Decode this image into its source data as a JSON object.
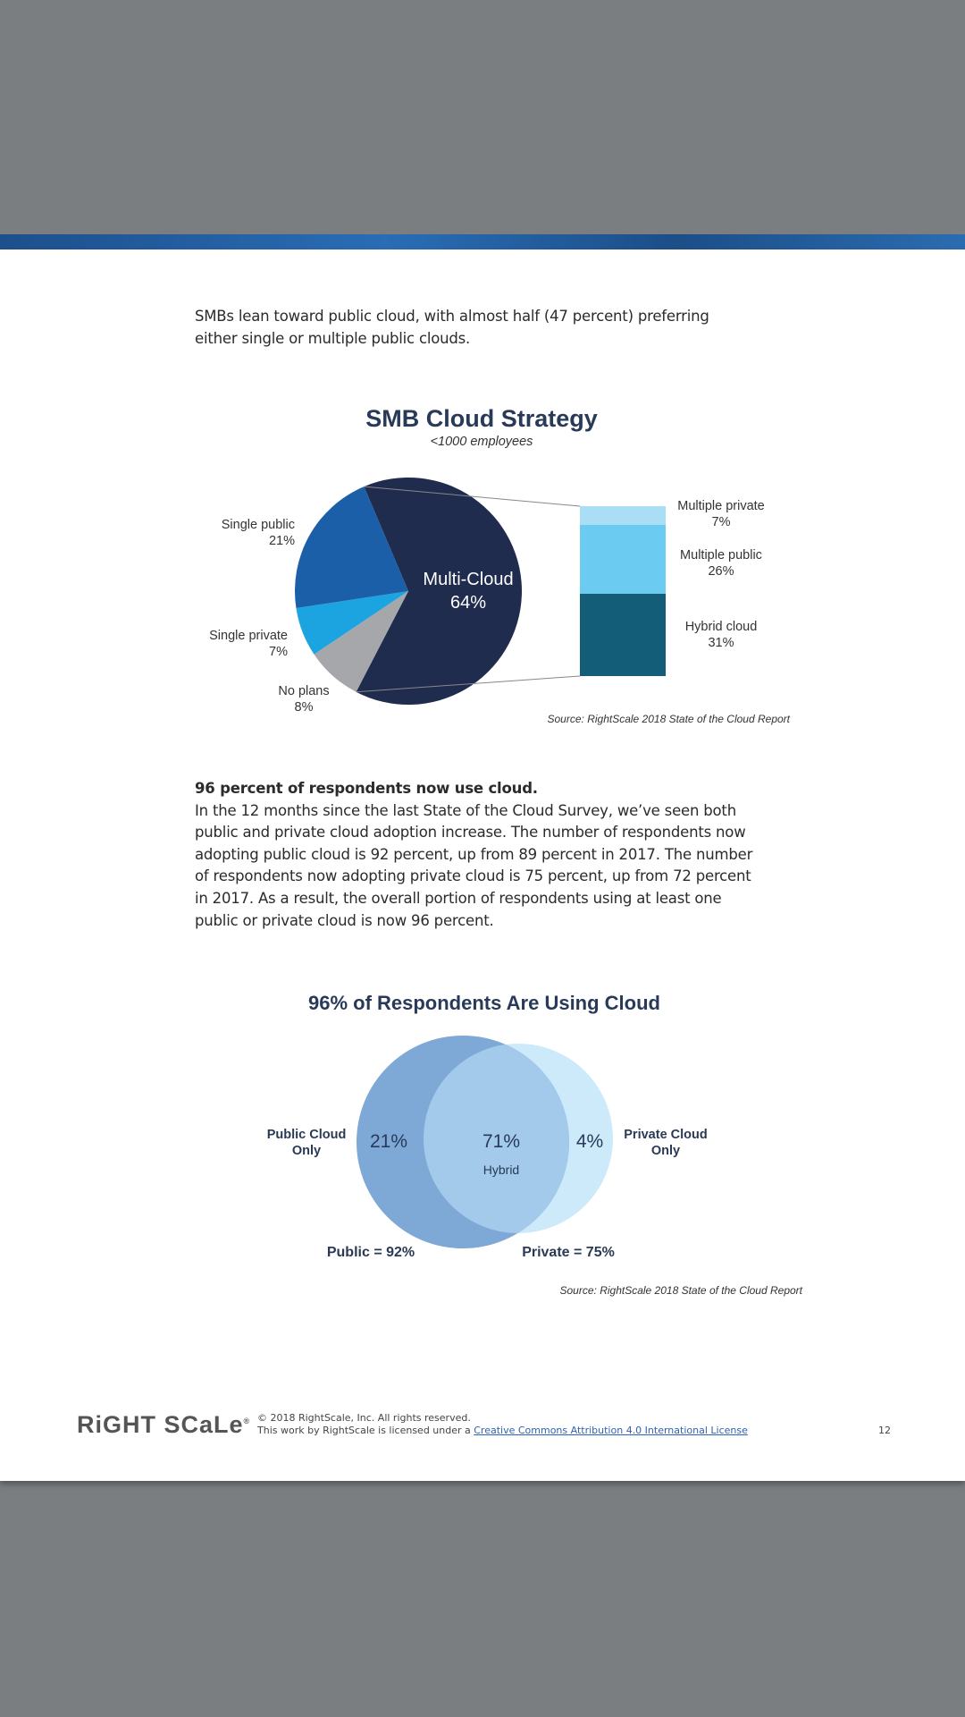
{
  "intro": {
    "line1": "SMBs lean toward public cloud, with almost half (47 percent) preferring",
    "line2": "either single or multiple public clouds."
  },
  "chart_data": [
    {
      "type": "pie",
      "title": "SMB Cloud Strategy",
      "subtitle": "<1000 employees",
      "slices": [
        {
          "label": "Multi-Cloud",
          "value": 64,
          "display": "64%",
          "color": "#1f2c4d"
        },
        {
          "label": "No plans",
          "value": 8,
          "display": "8%",
          "color": "#a5a7aa"
        },
        {
          "label": "Single private",
          "value": 7,
          "display": "7%",
          "color": "#1ca4e1"
        },
        {
          "label": "Single public",
          "value": 21,
          "display": "21%",
          "color": "#1b5fa9"
        }
      ],
      "breakdown": {
        "of": "Multi-Cloud",
        "segments": [
          {
            "label": "Multiple private",
            "value": 7,
            "display": "7%",
            "color": "#a9def6"
          },
          {
            "label": "Multiple public",
            "value": 26,
            "display": "26%",
            "color": "#6ccbf1"
          },
          {
            "label": "Hybrid cloud",
            "value": 31,
            "display": "31%",
            "color": "#145d79"
          }
        ]
      },
      "source": "Source: RightScale 2018 State of the Cloud Report"
    },
    {
      "type": "venn",
      "title": "96% of Respondents Are Using Cloud",
      "sets": [
        {
          "label": "Public = 92%",
          "value": 92,
          "color": "#7ea9d6"
        },
        {
          "label": "Private = 75%",
          "value": 75,
          "color": "#cdeafb"
        }
      ],
      "regions": [
        {
          "label": "Public Cloud Only",
          "value": 21,
          "display": "21%"
        },
        {
          "label": "Hybrid",
          "value": 71,
          "display": "71%"
        },
        {
          "label": "Private Cloud Only",
          "value": 4,
          "display": "4%"
        }
      ],
      "overlap_color": "#a3c9eb",
      "source": "Source: RightScale 2018 State of the Cloud Report"
    }
  ],
  "section": {
    "heading": "96 percent of respondents now use cloud.",
    "lines": [
      "In the 12 months since the last State of the Cloud Survey, we’ve seen both",
      "public and private cloud adoption increase. The number of respondents now",
      "adopting public cloud is 92 percent, up from 89 percent in 2017. The number",
      "of respondents now adopting private cloud is 75 percent, up from 72 percent",
      "in 2017. As a result, the overall portion of respondents using at least one",
      "public or private cloud is now 96 percent."
    ]
  },
  "footer": {
    "logo": "RIGHTSCALE",
    "copyright": "© 2018 RightScale, Inc. All rights reserved.",
    "license_prefix": "This work by RightScale is licensed under a ",
    "license_link": "Creative Commons Attribution 4.0 International License",
    "page_number": "12"
  }
}
